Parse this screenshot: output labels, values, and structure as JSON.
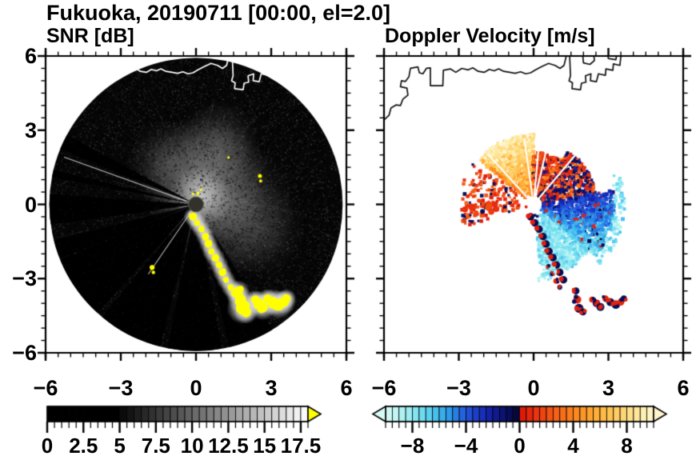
{
  "title": "Fukuoka, 20190711 [00:00, el=2.0]",
  "panels": {
    "snr": {
      "subtitle": "SNR [dB]",
      "axis_range": [
        -6,
        6
      ],
      "minor_step": 0.5,
      "x_ticks": {
        "values": [
          -6,
          -3,
          0,
          3,
          6
        ],
        "labels": [
          "−6",
          "−3",
          "0",
          "3",
          "6"
        ]
      },
      "y_ticks": {
        "values": [
          6,
          3,
          0,
          -3,
          -6
        ],
        "labels": [
          "6",
          "3",
          "0",
          "−3",
          "−6"
        ]
      }
    },
    "vel": {
      "subtitle": "Doppler Velocity [m/s]",
      "axis_range": [
        -6,
        6
      ],
      "minor_step": 0.5,
      "x_ticks": {
        "values": [
          -6,
          -3,
          0,
          3,
          6
        ],
        "labels": [
          "−6",
          "−3",
          "0",
          "3",
          "6"
        ]
      }
    }
  },
  "map_overlay": {
    "coastlines": [
      [
        [
          -6,
          3.42
        ],
        [
          -5.8,
          3.6
        ],
        [
          -5.72,
          3.9
        ],
        [
          -5.52,
          4.02
        ],
        [
          -5.34,
          4.0
        ],
        [
          -5.24,
          4.26
        ],
        [
          -5.04,
          4.42
        ],
        [
          -5.08,
          4.7
        ],
        [
          -5.34,
          4.76
        ],
        [
          -5.3,
          5.0
        ],
        [
          -5.14,
          4.97
        ],
        [
          -5.0,
          5.16
        ],
        [
          -4.94,
          5.5
        ],
        [
          -4.64,
          5.56
        ],
        [
          -4.58,
          5.32
        ],
        [
          -4.44,
          5.28
        ],
        [
          -4.3,
          5.5
        ],
        [
          -4.14,
          5.52
        ],
        [
          -4.14,
          4.8
        ],
        [
          -3.64,
          4.8
        ],
        [
          -3.62,
          5.42
        ],
        [
          -3.34,
          5.48
        ],
        [
          -3.12,
          5.34
        ],
        [
          -2.88,
          5.5
        ],
        [
          -2.62,
          5.44
        ],
        [
          -2.44,
          5.52
        ],
        [
          -2.22,
          5.38
        ],
        [
          -1.98,
          5.34
        ],
        [
          -1.78,
          5.46
        ],
        [
          -1.58,
          5.4
        ],
        [
          -1.4,
          5.48
        ],
        [
          -1.2,
          5.38
        ],
        [
          -0.96,
          5.34
        ],
        [
          -0.74,
          5.3
        ],
        [
          -0.52,
          5.36
        ],
        [
          -0.32,
          5.28
        ],
        [
          -0.12,
          5.32
        ],
        [
          0.08,
          5.44
        ],
        [
          0.34,
          5.58
        ],
        [
          0.6,
          5.7
        ],
        [
          0.86,
          5.62
        ],
        [
          1.06,
          5.5
        ],
        [
          1.22,
          5.62
        ],
        [
          1.3,
          5.95
        ],
        [
          1.36,
          6.15
        ]
      ],
      [
        [
          1.44,
          6.15
        ],
        [
          1.48,
          5.2
        ],
        [
          1.42,
          5.0
        ],
        [
          1.56,
          4.92
        ],
        [
          1.54,
          4.68
        ],
        [
          1.88,
          4.64
        ],
        [
          1.92,
          4.9
        ],
        [
          2.1,
          4.94
        ],
        [
          2.08,
          5.2
        ],
        [
          2.3,
          5.28
        ],
        [
          2.28,
          5.0
        ],
        [
          2.52,
          4.96
        ],
        [
          2.6,
          5.28
        ],
        [
          2.88,
          5.22
        ],
        [
          2.9,
          5.48
        ],
        [
          3.18,
          5.42
        ],
        [
          3.2,
          5.68
        ],
        [
          3.46,
          5.62
        ],
        [
          3.52,
          6.15
        ]
      ],
      [
        [
          1.96,
          6.15
        ],
        [
          2.0,
          5.72
        ],
        [
          2.26,
          5.66
        ],
        [
          2.44,
          5.82
        ],
        [
          2.4,
          6.15
        ]
      ],
      [
        [
          2.95,
          6.15
        ],
        [
          3.0,
          5.9
        ],
        [
          3.3,
          5.85
        ],
        [
          3.35,
          6.15
        ]
      ]
    ]
  },
  "chart_data": [
    {
      "type": "heatmap",
      "panel": "snr",
      "title": "SNR [dB]",
      "xlim": [
        -6,
        6
      ],
      "ylim": [
        -6,
        6
      ],
      "colorbar": {
        "range": [
          0,
          18
        ],
        "cell_step": 0.5,
        "scheme": "black-to-white",
        "black_below": 5,
        "key_colors": {
          "low": "#000000",
          "high": "#ffffff",
          "over": "#ffff00"
        },
        "ticks": {
          "values": [
            0,
            2.5,
            5,
            7.5,
            10,
            12.5,
            15,
            17.5
          ],
          "labels": [
            "0",
            "2.5",
            "5",
            "7.5",
            "10",
            "12.5",
            "15",
            "17.5"
          ],
          "minor_step": 0.5
        }
      },
      "scene": {
        "disk_radius": 5.85,
        "disk_color": "#060606",
        "echo_blobs": [
          {
            "x": 0.35,
            "y": 0.95,
            "r": 2.6,
            "alpha": 0.4
          },
          {
            "x": 1.25,
            "y": -0.15,
            "r": 2.7,
            "alpha": 0.26
          },
          {
            "x": 0.15,
            "y": 0.25,
            "r": 1.25,
            "alpha": 0.5
          },
          {
            "x": 2.45,
            "y": -1.05,
            "r": 1.9,
            "alpha": 0.16
          },
          {
            "x": -1.1,
            "y": 1.7,
            "r": 1.7,
            "alpha": 0.2
          },
          {
            "x": 0.9,
            "y": 2.6,
            "r": 1.6,
            "alpha": 0.22
          }
        ],
        "shadow_wedges": [
          {
            "az": 296,
            "hw": 3.5,
            "r0": 0.3,
            "alpha": 0.95
          },
          {
            "az": 283,
            "hw": 2.2,
            "r0": 0.3,
            "alpha": 0.9
          },
          {
            "az": 268,
            "hw": 6.0,
            "r0": 0.3,
            "alpha": 0.95
          },
          {
            "az": 252,
            "hw": 4.0,
            "r0": 0.3,
            "alpha": 0.9
          },
          {
            "az": 235,
            "hw": 13.0,
            "r0": 0.3,
            "alpha": 0.97
          },
          {
            "az": 207,
            "hw": 13.0,
            "r0": 0.5,
            "alpha": 0.93
          },
          {
            "az": 181,
            "hw": 11.0,
            "r0": 0.9,
            "alpha": 0.9
          },
          {
            "az": 158,
            "hw": 9.0,
            "r0": 1.3,
            "alpha": 0.85
          }
        ],
        "thin_dark_spokes": [
          {
            "az": 354,
            "hw": 0.7
          },
          {
            "az": 3,
            "hw": 0.7
          },
          {
            "az": 10,
            "hw": 0.6
          }
        ],
        "bright_lines": [
          {
            "az": 290,
            "r0": 0.4,
            "r1": 5.6
          },
          {
            "az": 214,
            "r0": 0.4,
            "r1": 3.4
          }
        ],
        "clutter_color": "#ffff00",
        "clutter_chain": [
          [
            -0.12,
            -0.5
          ],
          [
            0.05,
            -0.75
          ],
          [
            0.22,
            -1.0
          ],
          [
            0.38,
            -1.3
          ],
          [
            0.5,
            -1.6
          ],
          [
            0.62,
            -1.9
          ],
          [
            0.78,
            -2.15
          ],
          [
            0.92,
            -2.45
          ],
          [
            1.05,
            -2.75
          ],
          [
            1.2,
            -3.05
          ],
          [
            1.38,
            -3.35
          ],
          [
            1.55,
            -3.6
          ]
        ],
        "clutter_blobs": [
          [
            1.7,
            -3.5,
            0.18
          ],
          [
            1.78,
            -3.85,
            0.22
          ],
          [
            1.85,
            -4.2,
            0.26
          ],
          [
            2.0,
            -4.35,
            0.2
          ],
          [
            2.35,
            -3.85,
            0.16
          ],
          [
            2.5,
            -4.0,
            0.2
          ],
          [
            2.65,
            -4.15,
            0.22
          ],
          [
            2.85,
            -3.8,
            0.16
          ],
          [
            3.05,
            -3.95,
            0.22
          ],
          [
            3.3,
            -4.05,
            0.24
          ],
          [
            3.5,
            -3.95,
            0.2
          ],
          [
            3.62,
            -3.8,
            0.16
          ]
        ],
        "clutter_specks": [
          [
            -1.75,
            -2.55,
            0.1
          ],
          [
            -1.7,
            -2.75,
            0.07
          ],
          [
            2.55,
            1.15,
            0.08
          ],
          [
            2.58,
            0.95,
            0.06
          ],
          [
            0.08,
            0.45,
            0.06
          ],
          [
            0.2,
            0.6,
            0.05
          ],
          [
            -0.12,
            0.42,
            0.05
          ],
          [
            1.3,
            1.9,
            0.05
          ]
        ],
        "center_disk": {
          "r": 0.3,
          "color": "#32322a"
        }
      }
    },
    {
      "type": "heatmap",
      "panel": "vel",
      "title": "Doppler Velocity [m/s]",
      "xlim": [
        -6,
        6
      ],
      "ylim": [
        -6,
        6
      ],
      "colorbar": {
        "range": [
          -10,
          10
        ],
        "cell_step": 0.5,
        "scheme": "cyan-blue-navy-red-orange-yellow",
        "under_arrow": true,
        "over_arrow": true,
        "key_colors": {
          "neg_far": "#d8fbf7",
          "neg_near": "#03062e",
          "pos_near": "#dd1207",
          "pos_far": "#fdf6cf"
        },
        "ticks": {
          "values": [
            -8,
            -4,
            0,
            4,
            8
          ],
          "labels": [
            "−8",
            "−4",
            "0",
            "4",
            "8"
          ],
          "minor_step": 0.5
        }
      },
      "scene": {
        "sectors": [
          {
            "name": "pale-yellow-fan",
            "az0": 309,
            "az1": 360,
            "r0": 0.35,
            "r1": 2.85,
            "kind": "fan_yellow",
            "skip": 0.1
          },
          {
            "name": "orange-red-north",
            "az0": 358,
            "az1": 393,
            "r0": 0.35,
            "r1": 2.1,
            "kind": "red_mix",
            "skip": 0.12
          },
          {
            "name": "red-navy-northeast",
            "az0": 33,
            "az1": 80,
            "r0": 0.35,
            "r1": 2.55,
            "kind": "red_navy_mix",
            "skip": 0.18
          },
          {
            "name": "blue-cyan-east",
            "az0": 80,
            "az1": 130,
            "r0": 0.35,
            "r1": 3.25,
            "kind": "blue_cyan",
            "skip": 0.12
          },
          {
            "name": "cyan-outer-fringe",
            "az0": 70,
            "az1": 132,
            "r0": 3.25,
            "r1": 3.65,
            "kind": "cyan_sparse",
            "skip": 0.72
          },
          {
            "name": "cyan-south",
            "az0": 130,
            "az1": 174,
            "r0": 0.5,
            "r1": 2.95,
            "kind": "cyan_sparse",
            "skip": 0.3
          },
          {
            "name": "west-warm-specks",
            "az0": 252,
            "az1": 306,
            "r0": 0.55,
            "r1": 2.95,
            "kind": "warm_specks",
            "skip": 0.8
          }
        ],
        "chain": [
          [
            -0.12,
            -0.5
          ],
          [
            0.05,
            -0.75
          ],
          [
            0.22,
            -1.0
          ],
          [
            0.38,
            -1.3
          ],
          [
            0.5,
            -1.6
          ],
          [
            0.62,
            -1.9
          ],
          [
            0.78,
            -2.15
          ],
          [
            0.92,
            -2.45
          ],
          [
            1.05,
            -2.75
          ],
          [
            1.2,
            -3.05
          ]
        ],
        "lower_blobs": [
          [
            0.6,
            -2.5,
            0.09
          ],
          [
            0.75,
            -2.8,
            0.1
          ],
          [
            0.9,
            -3.1,
            0.11
          ],
          [
            1.05,
            -3.35,
            0.1
          ],
          [
            1.7,
            -3.5,
            0.14
          ],
          [
            1.75,
            -3.85,
            0.16
          ],
          [
            1.82,
            -4.2,
            0.18
          ],
          [
            1.98,
            -4.35,
            0.14
          ],
          [
            2.35,
            -3.85,
            0.12
          ],
          [
            2.52,
            -4.0,
            0.15
          ],
          [
            2.68,
            -4.15,
            0.16
          ],
          [
            2.88,
            -3.8,
            0.12
          ],
          [
            3.08,
            -3.95,
            0.16
          ],
          [
            3.3,
            -4.05,
            0.17
          ],
          [
            3.5,
            -3.95,
            0.14
          ],
          [
            3.62,
            -3.8,
            0.12
          ]
        ],
        "cyan_specks_center": [
          0.55,
          -2.85
        ],
        "west_cluster": [
          [
            -1.55,
            0.0
          ],
          [
            -1.8,
            -0.12
          ],
          [
            -2.05,
            -0.28
          ],
          [
            -2.3,
            -0.38
          ],
          [
            -1.7,
            -0.3
          ],
          [
            -1.5,
            -0.18
          ],
          [
            -2.5,
            -0.1
          ],
          [
            -2.75,
            -0.2
          ]
        ],
        "red_dash": [
          1.7,
          -0.6
        ],
        "dashed_line": {
          "az": 287,
          "r0": 0.95,
          "r1": 2.95
        },
        "white_gaps": [
          318,
          352,
          5,
          13,
          40
        ],
        "center_hole_r": 0.33
      }
    }
  ]
}
